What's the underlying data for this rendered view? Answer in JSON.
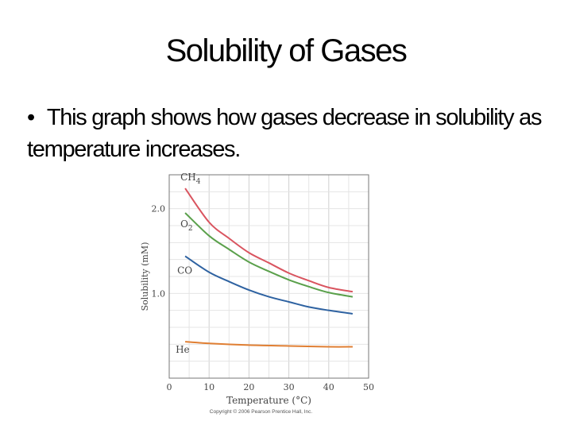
{
  "slide": {
    "title": "Solubility of Gases",
    "bullet": "This graph shows how gases decrease in solubility as temperature increases."
  },
  "chart_data": {
    "type": "line",
    "xlabel": "Temperature (°C)",
    "ylabel": "Solubility (mM)",
    "xlim": [
      0,
      50
    ],
    "ylim": [
      0,
      2.4
    ],
    "x_ticks": [
      0,
      10,
      20,
      30,
      40,
      50
    ],
    "x_tick_labels": [
      "0",
      "10",
      "20",
      "30",
      "40",
      "50"
    ],
    "y_ticks": [
      1.0,
      2.0
    ],
    "y_tick_labels": [
      "1.0",
      "2.0"
    ],
    "grid": true,
    "series": [
      {
        "name": "CH4",
        "color": "#d9545f",
        "x": [
          4,
          10,
          15,
          20,
          25,
          30,
          35,
          40,
          46
        ],
        "y": [
          2.24,
          1.84,
          1.65,
          1.48,
          1.36,
          1.24,
          1.15,
          1.07,
          1.02
        ]
      },
      {
        "name": "O2",
        "color": "#5aa04b",
        "x": [
          4,
          10,
          15,
          20,
          25,
          30,
          35,
          40,
          46
        ],
        "y": [
          1.95,
          1.68,
          1.52,
          1.37,
          1.26,
          1.16,
          1.08,
          1.01,
          0.96
        ]
      },
      {
        "name": "CO",
        "color": "#2e62a1",
        "x": [
          4,
          10,
          15,
          20,
          25,
          30,
          35,
          40,
          46
        ],
        "y": [
          1.44,
          1.25,
          1.14,
          1.04,
          0.96,
          0.9,
          0.84,
          0.8,
          0.76
        ]
      },
      {
        "name": "He",
        "color": "#e07f33",
        "x": [
          4,
          10,
          20,
          30,
          40,
          46
        ],
        "y": [
          0.43,
          0.41,
          0.39,
          0.38,
          0.37,
          0.37
        ]
      }
    ],
    "series_labels": [
      {
        "text": "CH",
        "sub": "4",
        "series": "CH4"
      },
      {
        "text": "O",
        "sub": "2",
        "series": "O2"
      },
      {
        "text": "CO",
        "sub": "",
        "series": "CO"
      },
      {
        "text": "He",
        "sub": "",
        "series": "He"
      }
    ],
    "copyright": "Copyright © 2006 Pearson Prentice Hall, Inc."
  }
}
